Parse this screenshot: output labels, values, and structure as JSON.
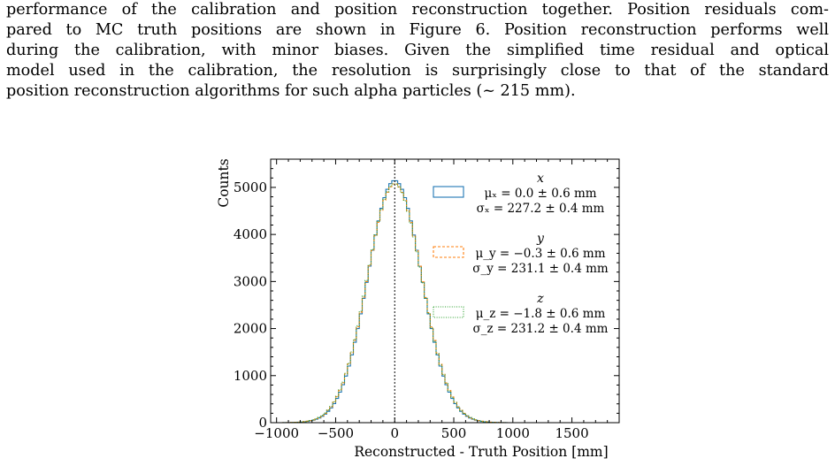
{
  "paragraph": {
    "lines": [
      "performance of the calibration and position reconstruction together. Position residuals com-",
      "pared to MC truth positions are shown in Figure 6. Position reconstruction performs well",
      "during the calibration, with minor biases. Given the simplified time residual and optical",
      "model used in the calibration, the resolution is surprisingly close to that of the standard",
      "position reconstruction algorithms for such alpha particles (~ 215 mm)."
    ]
  },
  "colors": {
    "x": "#1f77b4",
    "y": "#ff7f0e",
    "z": "#2ca02c",
    "frame": "#000000"
  },
  "chart_data": {
    "type": "histogram",
    "xlabel": "Reconstructed - Truth Position [mm]",
    "ylabel": "Counts",
    "xlim": [
      -1050,
      1900
    ],
    "ylim": [
      0,
      5600
    ],
    "xticks": [
      -1000,
      -500,
      0,
      500,
      1000,
      1500
    ],
    "xtick_labels": [
      "−1000",
      "−500",
      "0",
      "500",
      "1000",
      "1500"
    ],
    "yticks": [
      0,
      1000,
      2000,
      3000,
      4000,
      5000
    ],
    "ytick_labels": [
      "0",
      "1000",
      "2000",
      "3000",
      "4000",
      "5000"
    ],
    "bin_width": 25,
    "bin_range": [
      -1000,
      1000
    ],
    "vertical_line_x": 0,
    "legend_position": "upper right",
    "series": [
      {
        "name": "x",
        "mu_label": "μₓ = 0.0 ± 0.6 mm",
        "sigma_label": "σₓ = 227.2 ± 0.4 mm",
        "style": "solid",
        "mu": 0.0,
        "sigma": 227.2,
        "peak": 5150
      },
      {
        "name": "y",
        "mu_label": "μ_y = −0.3 ± 0.6 mm",
        "sigma_label": "σ_y = 231.1 ± 0.4 mm",
        "style": "dashed",
        "mu": -0.3,
        "sigma": 231.1,
        "peak": 5080
      },
      {
        "name": "z",
        "mu_label": "μ_z = −1.8 ± 0.6 mm",
        "sigma_label": "σ_z = 231.2 ± 0.4 mm",
        "style": "dotted",
        "mu": -1.8,
        "sigma": 231.2,
        "peak": 5080
      }
    ]
  }
}
